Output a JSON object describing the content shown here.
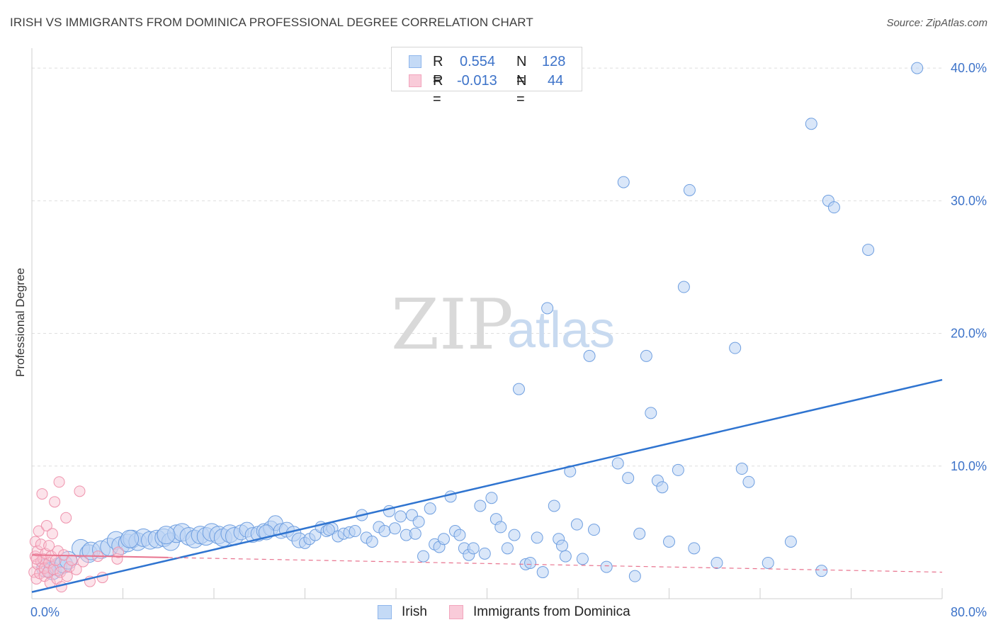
{
  "header": {
    "title": "IRISH VS IMMIGRANTS FROM DOMINICA PROFESSIONAL DEGREE CORRELATION CHART",
    "source": "Source: ZipAtlas.com"
  },
  "watermark": {
    "zip": "ZIP",
    "atlas": "atlas"
  },
  "stats": [
    {
      "name": "Irish",
      "r_label": "R =",
      "r_value": "0.554",
      "n_label": "N =",
      "n_value": "128",
      "color": "#8fb6ec",
      "fill": "#c4daf6"
    },
    {
      "name": "Immigrants from Dominica",
      "r_label": "R =",
      "r_value": "-0.013",
      "n_label": "N =",
      "n_value": "44",
      "color": "#f2a5bd",
      "fill": "#f9cbd9"
    }
  ],
  "legend": [
    {
      "label": "Irish",
      "fill": "#c4daf6",
      "border": "#8fb6ec"
    },
    {
      "label": "Immigrants from Dominica",
      "fill": "#f9cbd9",
      "border": "#f2a5bd"
    }
  ],
  "chart_data": {
    "type": "scatter",
    "title": "IRISH VS IMMIGRANTS FROM DOMINICA PROFESSIONAL DEGREE CORRELATION CHART",
    "xlabel": "",
    "ylabel": "Professional Degree",
    "xlim": [
      0,
      80
    ],
    "ylim": [
      0,
      41.5
    ],
    "x_tick_labels": [
      "0.0%",
      "80.0%"
    ],
    "y_ticks": [
      10,
      20,
      30,
      40
    ],
    "y_tick_labels": [
      "10.0%",
      "20.0%",
      "30.0%",
      "40.0%"
    ],
    "grid": true,
    "series": [
      {
        "name": "Irish",
        "color": "#3d7bd8",
        "fill": "#bcd4f4",
        "points": [
          [
            1.2,
            2.3
          ],
          [
            1.8,
            2.1
          ],
          [
            2.3,
            2.4
          ],
          [
            2.8,
            2.6
          ],
          [
            3.2,
            2.9
          ],
          [
            4.3,
            3.8
          ],
          [
            5.0,
            3.4
          ],
          [
            5.2,
            3.6
          ],
          [
            6.1,
            3.7
          ],
          [
            6.8,
            3.9
          ],
          [
            7.4,
            4.4
          ],
          [
            7.8,
            4.0
          ],
          [
            8.4,
            4.2
          ],
          [
            8.8,
            4.5
          ],
          [
            9.3,
            4.3
          ],
          [
            9.8,
            4.6
          ],
          [
            10.4,
            4.4
          ],
          [
            11.0,
            4.5
          ],
          [
            11.6,
            4.6
          ],
          [
            12.2,
            4.3
          ],
          [
            12.7,
            4.9
          ],
          [
            13.2,
            5.0
          ],
          [
            13.8,
            4.7
          ],
          [
            14.3,
            4.5
          ],
          [
            14.8,
            4.8
          ],
          [
            15.3,
            4.7
          ],
          [
            15.8,
            5.0
          ],
          [
            16.4,
            4.8
          ],
          [
            16.8,
            4.6
          ],
          [
            17.4,
            4.9
          ],
          [
            17.8,
            4.7
          ],
          [
            18.4,
            5.0
          ],
          [
            18.9,
            5.2
          ],
          [
            19.4,
            4.8
          ],
          [
            19.9,
            4.9
          ],
          [
            20.4,
            5.1
          ],
          [
            21.0,
            5.3
          ],
          [
            21.4,
            5.7
          ],
          [
            21.9,
            5.1
          ],
          [
            22.4,
            5.2
          ],
          [
            23.0,
            4.9
          ],
          [
            23.5,
            4.4
          ],
          [
            24.0,
            4.2
          ],
          [
            24.4,
            4.5
          ],
          [
            24.9,
            4.8
          ],
          [
            25.4,
            5.4
          ],
          [
            25.9,
            5.1
          ],
          [
            26.4,
            5.3
          ],
          [
            26.9,
            4.7
          ],
          [
            27.4,
            4.9
          ],
          [
            27.9,
            5.0
          ],
          [
            28.4,
            5.1
          ],
          [
            29.0,
            6.3
          ],
          [
            29.4,
            4.6
          ],
          [
            29.9,
            4.3
          ],
          [
            30.5,
            5.4
          ],
          [
            31.0,
            5.1
          ],
          [
            31.4,
            6.6
          ],
          [
            31.9,
            5.3
          ],
          [
            32.4,
            6.2
          ],
          [
            32.9,
            4.8
          ],
          [
            33.4,
            6.3
          ],
          [
            34.0,
            5.8
          ],
          [
            34.4,
            3.2
          ],
          [
            35.0,
            6.8
          ],
          [
            35.4,
            4.1
          ],
          [
            35.8,
            3.9
          ],
          [
            36.2,
            4.5
          ],
          [
            36.8,
            7.7
          ],
          [
            37.2,
            5.1
          ],
          [
            37.6,
            4.8
          ],
          [
            38.0,
            3.8
          ],
          [
            38.4,
            3.3
          ],
          [
            38.8,
            3.8
          ],
          [
            39.4,
            7.0
          ],
          [
            39.8,
            3.4
          ],
          [
            40.4,
            7.6
          ],
          [
            40.8,
            6.0
          ],
          [
            41.2,
            5.4
          ],
          [
            41.8,
            3.8
          ],
          [
            42.4,
            4.8
          ],
          [
            42.8,
            15.8
          ],
          [
            43.4,
            2.6
          ],
          [
            43.8,
            2.7
          ],
          [
            44.4,
            4.6
          ],
          [
            44.9,
            2.0
          ],
          [
            45.3,
            21.9
          ],
          [
            45.9,
            7.0
          ],
          [
            46.3,
            4.5
          ],
          [
            46.9,
            3.2
          ],
          [
            47.3,
            9.6
          ],
          [
            47.9,
            5.6
          ],
          [
            48.4,
            3.0
          ],
          [
            49.0,
            18.3
          ],
          [
            49.4,
            5.2
          ],
          [
            50.5,
            2.4
          ],
          [
            51.5,
            10.2
          ],
          [
            52.0,
            31.4
          ],
          [
            52.4,
            9.1
          ],
          [
            53.0,
            1.7
          ],
          [
            53.4,
            4.9
          ],
          [
            54.0,
            18.3
          ],
          [
            54.4,
            14.0
          ],
          [
            55.0,
            8.9
          ],
          [
            55.4,
            8.4
          ],
          [
            56.0,
            4.3
          ],
          [
            56.8,
            9.7
          ],
          [
            57.3,
            23.5
          ],
          [
            57.8,
            30.8
          ],
          [
            58.2,
            3.8
          ],
          [
            60.2,
            2.7
          ],
          [
            61.8,
            18.9
          ],
          [
            62.4,
            9.8
          ],
          [
            63.0,
            8.8
          ],
          [
            64.7,
            2.7
          ],
          [
            66.7,
            4.3
          ],
          [
            68.5,
            35.8
          ],
          [
            69.4,
            2.1
          ],
          [
            70.0,
            30.0
          ],
          [
            70.5,
            29.5
          ],
          [
            73.5,
            26.3
          ],
          [
            77.8,
            40.0
          ],
          [
            8.6,
            4.5
          ],
          [
            11.8,
            4.8
          ],
          [
            20.6,
            5.0
          ],
          [
            26.1,
            5.2
          ],
          [
            33.7,
            4.9
          ],
          [
            46.6,
            4.0
          ]
        ],
        "trendline": {
          "x": [
            0,
            80
          ],
          "y": [
            0.5,
            16.5
          ]
        }
      },
      {
        "name": "Immigrants from Dominica",
        "color": "#e8748f",
        "fill": "#f8c1d1",
        "points": [
          [
            0.2,
            2.0
          ],
          [
            0.3,
            3.2
          ],
          [
            0.3,
            4.3
          ],
          [
            0.4,
            1.5
          ],
          [
            0.5,
            2.6
          ],
          [
            0.5,
            3.6
          ],
          [
            0.6,
            5.1
          ],
          [
            0.7,
            1.9
          ],
          [
            0.8,
            2.8
          ],
          [
            0.8,
            4.1
          ],
          [
            0.9,
            7.9
          ],
          [
            1.0,
            3.0
          ],
          [
            1.1,
            1.7
          ],
          [
            1.1,
            2.3
          ],
          [
            1.2,
            3.4
          ],
          [
            1.3,
            5.5
          ],
          [
            1.4,
            2.0
          ],
          [
            1.5,
            2.7
          ],
          [
            1.5,
            4.0
          ],
          [
            1.6,
            1.2
          ],
          [
            1.7,
            3.2
          ],
          [
            1.8,
            4.9
          ],
          [
            1.9,
            2.2
          ],
          [
            2.0,
            7.3
          ],
          [
            2.1,
            2.9
          ],
          [
            2.2,
            1.5
          ],
          [
            2.3,
            3.6
          ],
          [
            2.4,
            8.8
          ],
          [
            2.5,
            2.0
          ],
          [
            2.6,
            0.9
          ],
          [
            2.8,
            3.3
          ],
          [
            3.0,
            6.1
          ],
          [
            3.1,
            1.7
          ],
          [
            3.3,
            2.4
          ],
          [
            3.5,
            2.9
          ],
          [
            3.9,
            2.2
          ],
          [
            4.2,
            8.1
          ],
          [
            4.5,
            2.8
          ],
          [
            5.1,
            1.3
          ],
          [
            5.8,
            3.2
          ],
          [
            6.2,
            1.6
          ],
          [
            7.5,
            3.0
          ],
          [
            7.6,
            3.5
          ],
          [
            0.4,
            3.0
          ]
        ],
        "trendline": {
          "x": [
            0,
            80
          ],
          "y": [
            3.3,
            2.0
          ]
        }
      }
    ]
  }
}
